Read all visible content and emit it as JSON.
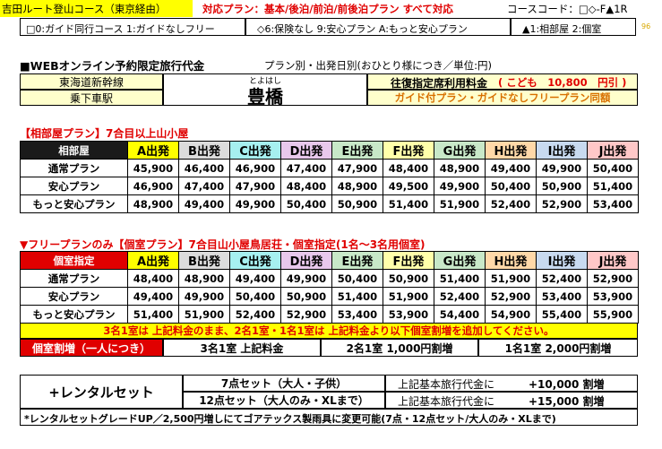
{
  "top": {
    "route_title": "吉田ルート登山コース（東京経由）",
    "plans_label": "対応プラン：基本/後泊/前泊/前後泊プラン すべて対応",
    "course_code": "コースコード：□◇-F▲1R",
    "legend_guide": "□0:ガイド同行コース 1:ガイドなしフリー",
    "legend_insurance": "◇6:保険なし 9:安心プラン A:もっと安心プラン",
    "legend_room": "▲1:相部屋 2:個室",
    "page_no": "96"
  },
  "fare": {
    "heading": "■WEBオンライン予約限定旅行代金",
    "subheading": "プラン別・出発日別(おひとり様につき／単位:円)",
    "line_name": "東海道新幹線",
    "board_label": "乗下車駅",
    "station_ruby": "とよはし",
    "station": "豊橋",
    "reserved_label": "往復指定席利用料金",
    "child_price": "( こども　10,800　円引 )",
    "same_price_note": "ガイド付プラン・ガイドなしフリープラン同額"
  },
  "section1": {
    "title": "【相部屋プラン】7合目以上山小屋",
    "corner": "相部屋",
    "departures": [
      "A出発",
      "B出発",
      "C出発",
      "D出発",
      "E出発",
      "F出発",
      "G出発",
      "H出発",
      "I出発",
      "J出発"
    ],
    "rows": [
      {
        "label": "通常プラン",
        "values": [
          "45,900",
          "46,400",
          "46,900",
          "47,400",
          "47,900",
          "48,400",
          "48,900",
          "49,400",
          "49,900",
          "50,400"
        ]
      },
      {
        "label": "安心プラン",
        "values": [
          "46,900",
          "47,400",
          "47,900",
          "48,400",
          "48,900",
          "49,500",
          "49,900",
          "50,400",
          "50,900",
          "51,400"
        ]
      },
      {
        "label": "もっと安心プラン",
        "values": [
          "48,900",
          "49,400",
          "49,900",
          "50,400",
          "50,900",
          "51,400",
          "51,900",
          "52,400",
          "52,900",
          "53,400"
        ]
      }
    ]
  },
  "section2": {
    "title": "▼フリープランのみ【個室プラン】7合目山小屋鳥居荘・個室指定(1名～3名用個室)",
    "corner": "個室指定",
    "departures": [
      "A出発",
      "B出発",
      "C出発",
      "D出発",
      "E出発",
      "F出発",
      "G出発",
      "H出発",
      "I出発",
      "J出発"
    ],
    "rows": [
      {
        "label": "通常プラン",
        "values": [
          "48,400",
          "48,900",
          "49,400",
          "49,900",
          "50,400",
          "50,900",
          "51,400",
          "51,900",
          "52,400",
          "52,900"
        ]
      },
      {
        "label": "安心プラン",
        "values": [
          "49,400",
          "49,900",
          "50,400",
          "50,900",
          "51,400",
          "51,900",
          "52,400",
          "52,900",
          "53,400",
          "53,900"
        ]
      },
      {
        "label": "もっと安心プラン",
        "values": [
          "51,400",
          "51,900",
          "52,400",
          "52,900",
          "53,400",
          "53,900",
          "54,400",
          "54,900",
          "55,400",
          "55,900"
        ]
      }
    ],
    "note": "3名1室は 上記料金のまま、2名1室・1名1室は 上記料金より以下個室割増を追加してください。",
    "surcharge_label": "個室割増（一人につき）",
    "surcharges": [
      "3名1室 上記料金",
      "2名1室 1,000円割増",
      "1名1室 2,000円割増"
    ]
  },
  "rental": {
    "title": "+レンタルセット",
    "rows": [
      {
        "set": "7点セット（大人・子供）",
        "desc": "上記基本旅行代金に",
        "price": "+10,000 割増"
      },
      {
        "set": "12点セット（大人のみ・XLまで）",
        "desc": "上記基本旅行代金に",
        "price": "+15,000 割増"
      }
    ],
    "note": "*レンタルセットグレードUP／2,500円増しにてゴアテックス製雨具に変更可能(7点・12点セット/大人のみ・XLまで)"
  },
  "colors": {
    "dep_colors": [
      "#ffff00",
      "#dcdcdc",
      "#a6f0f0",
      "#e8c8ec",
      "#c8e8c8",
      "#ffffaa",
      "#c8e8c8",
      "#ffd8a8",
      "#c8daf0",
      "#ffc8c8"
    ],
    "station_bg": "#ffffcc",
    "accent_red": "#e00000"
  }
}
